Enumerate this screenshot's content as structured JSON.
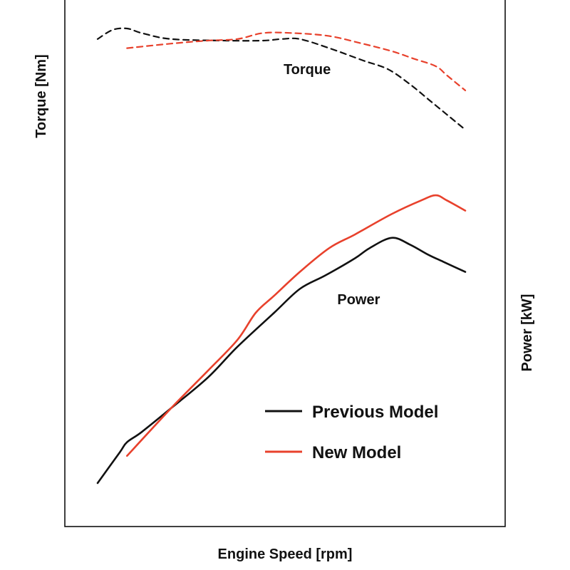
{
  "chart_data": {
    "type": "line",
    "title": "",
    "xlabel": "Engine Speed [rpm]",
    "ylabel_left": "Torque [Nm]",
    "ylabel_right": "Power [kW]",
    "grid": false,
    "tick_labels_shown": false,
    "xlim": [
      0,
      100
    ],
    "ylim_power": [
      0,
      100
    ],
    "ylim_torque": [
      0,
      100
    ],
    "annotations": [
      {
        "text": "Torque",
        "x": 57,
        "y_torque": 82
      },
      {
        "text": "Power",
        "x": 71,
        "y_power": 54
      }
    ],
    "legend": {
      "placement": "bottom-right",
      "entries": [
        {
          "label": "Previous Model",
          "color": "#111111"
        },
        {
          "label": "New Model",
          "color": "#e8412c"
        }
      ]
    },
    "series": [
      {
        "name": "Previous Model",
        "metric": "power",
        "axis": "right",
        "style": "solid",
        "color": "#111111",
        "x": [
          0,
          6,
          8,
          12,
          20,
          30,
          38,
          48,
          55,
          62,
          70,
          74,
          80,
          85,
          90,
          94,
          100
        ],
        "y": [
          0,
          9,
          12,
          15,
          22,
          31,
          40,
          50,
          57,
          61,
          66,
          69,
          72,
          70,
          67,
          65,
          62
        ]
      },
      {
        "name": "New Model",
        "metric": "power",
        "axis": "right",
        "style": "solid",
        "color": "#e8412c",
        "x": [
          8,
          20,
          30,
          38,
          43,
          48,
          55,
          63,
          70,
          80,
          88,
          92,
          95,
          100
        ],
        "y": [
          8,
          22,
          33,
          42,
          50,
          55,
          62,
          69,
          73,
          79,
          83,
          84.5,
          83,
          80
        ]
      },
      {
        "name": "Previous Model",
        "metric": "torque",
        "axis": "left",
        "style": "dashed",
        "color": "#111111",
        "x": [
          0,
          4,
          8,
          12,
          20,
          35,
          45,
          50,
          55,
          63,
          72,
          79,
          85,
          90,
          95,
          100
        ],
        "y": [
          92,
          95,
          95.5,
          94,
          92,
          91.5,
          91.5,
          92,
          92,
          89,
          85,
          82,
          77,
          72,
          67,
          62
        ]
      },
      {
        "name": "New Model",
        "metric": "torque",
        "axis": "left",
        "style": "dashed",
        "color": "#e8412c",
        "x": [
          8,
          20,
          30,
          38,
          45,
          53,
          63,
          72,
          80,
          86,
          92,
          95,
          100
        ],
        "y": [
          89,
          90.5,
          91.5,
          92,
          94,
          94,
          93,
          90.5,
          88,
          85.5,
          83,
          80,
          75
        ]
      }
    ]
  }
}
